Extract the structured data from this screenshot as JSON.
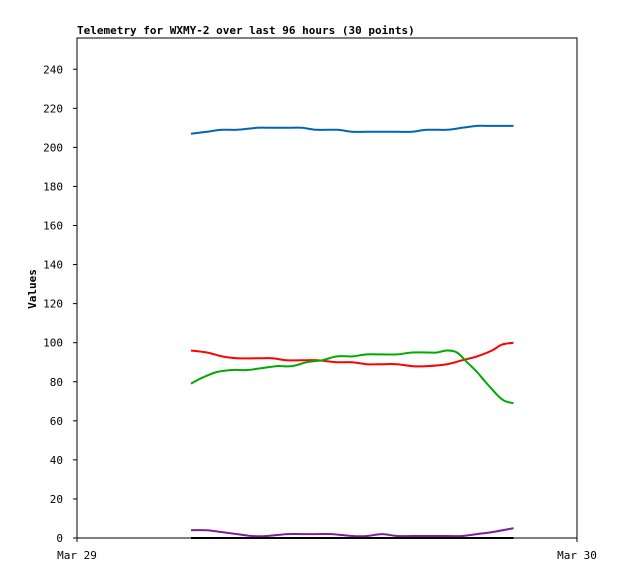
{
  "chart_data": {
    "type": "line",
    "title": "Telemetry for WXMY-2 over last 96 hours (30 points)",
    "xlabel": "",
    "ylabel": "Values",
    "x_ticks": [
      "Mar 29",
      "Mar 30"
    ],
    "y_ticks": [
      0,
      20,
      40,
      60,
      80,
      100,
      120,
      140,
      160,
      180,
      200,
      220,
      240
    ],
    "ylim": [
      0,
      256
    ],
    "xlim": [
      0,
      1
    ],
    "grid": false,
    "legend": "none",
    "series": [
      {
        "color": "#0066b3",
        "x": [
          0.228,
          0.26,
          0.29,
          0.32,
          0.36,
          0.39,
          0.42,
          0.45,
          0.48,
          0.52,
          0.55,
          0.58,
          0.61,
          0.64,
          0.67,
          0.7,
          0.74,
          0.77,
          0.8,
          0.82,
          0.873
        ],
        "values": [
          207,
          208,
          209,
          209,
          210,
          210,
          210,
          210,
          209,
          209,
          208,
          208,
          208,
          208,
          208,
          209,
          209,
          210,
          211,
          211,
          211
        ]
      },
      {
        "color": "#ff0000",
        "x": [
          0.228,
          0.26,
          0.29,
          0.32,
          0.36,
          0.39,
          0.42,
          0.45,
          0.48,
          0.52,
          0.55,
          0.58,
          0.61,
          0.64,
          0.67,
          0.7,
          0.74,
          0.77,
          0.8,
          0.83,
          0.85,
          0.873
        ],
        "values": [
          96,
          95,
          93,
          92,
          92,
          92,
          91,
          91,
          91,
          90,
          90,
          89,
          89,
          89,
          88,
          88,
          89,
          91,
          93,
          96,
          99,
          100
        ]
      },
      {
        "color": "#00aa00",
        "x": [
          0.228,
          0.25,
          0.28,
          0.31,
          0.34,
          0.37,
          0.4,
          0.43,
          0.46,
          0.49,
          0.52,
          0.55,
          0.58,
          0.61,
          0.64,
          0.67,
          0.7,
          0.72,
          0.74,
          0.76,
          0.78,
          0.8,
          0.82,
          0.85,
          0.873
        ],
        "values": [
          79,
          82,
          85,
          86,
          86,
          87,
          88,
          88,
          90,
          91,
          93,
          93,
          94,
          94,
          94,
          95,
          95,
          95,
          96,
          95,
          90,
          85,
          79,
          71,
          69
        ]
      },
      {
        "color": "#7e1e9c",
        "x": [
          0.228,
          0.26,
          0.29,
          0.32,
          0.35,
          0.38,
          0.42,
          0.45,
          0.48,
          0.51,
          0.55,
          0.58,
          0.61,
          0.64,
          0.67,
          0.7,
          0.74,
          0.77,
          0.8,
          0.83,
          0.873
        ],
        "values": [
          4,
          4,
          3,
          2,
          1,
          1,
          2,
          2,
          2,
          2,
          1,
          1,
          2,
          1,
          1,
          1,
          1,
          1,
          2,
          3,
          5
        ]
      },
      {
        "color": "#000000",
        "x": [
          0.228,
          0.873
        ],
        "values": [
          0,
          0
        ]
      }
    ]
  }
}
